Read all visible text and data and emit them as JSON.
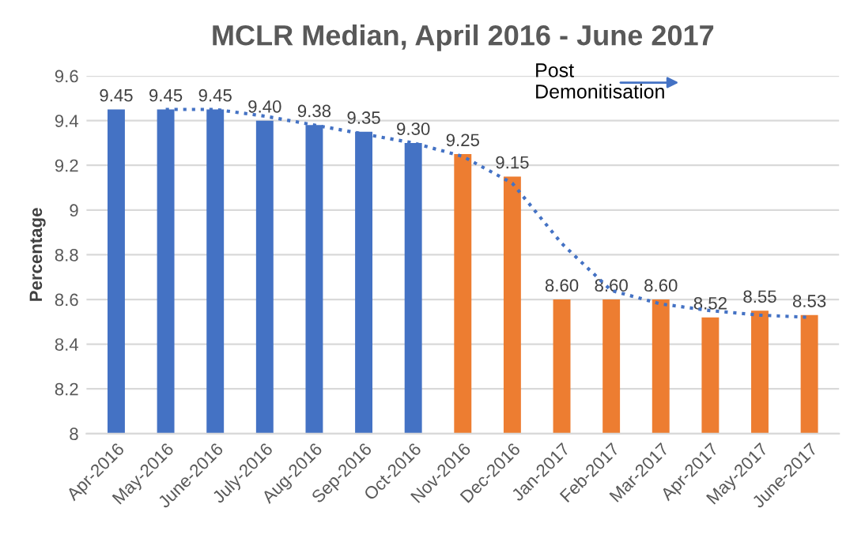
{
  "chart_data": {
    "type": "bar",
    "title": "MCLR Median, April 2016 - June 2017",
    "ylabel": "Percentage",
    "categories": [
      "Apr-2016",
      "May-2016",
      "June-2016",
      "July-2016",
      "Aug-2016",
      "Sep-2016",
      "Oct-2016",
      "Nov-2016",
      "Dec-2016",
      "Jan-2017",
      "Feb-2017",
      "Mar-2017",
      "Apr-2017",
      "May-2017",
      "June-2017"
    ],
    "series": [
      {
        "values": [
          9.45,
          9.45,
          9.45,
          9.4,
          9.38,
          9.35,
          9.3,
          9.25,
          9.15,
          8.6,
          8.6,
          8.6,
          8.52,
          8.55,
          8.53
        ],
        "colors": [
          "#4472c4",
          "#4472c4",
          "#4472c4",
          "#4472c4",
          "#4472c4",
          "#4472c4",
          "#4472c4",
          "#ed7d31",
          "#ed7d31",
          "#ed7d31",
          "#ed7d31",
          "#ed7d31",
          "#ed7d31",
          "#ed7d31",
          "#ed7d31"
        ],
        "value_labels": [
          "9.45",
          "9.45",
          "9.45",
          "9.40",
          "9.38",
          "9.35",
          "9.30",
          "9.25",
          "9.15",
          "8.60",
          "8.60",
          "8.60",
          "8.52",
          "8.55",
          "8.53"
        ]
      },
      {
        "type": "line",
        "color": "#4472c4",
        "line_style": "dotted",
        "values": [
          null,
          9.45,
          9.45,
          9.42,
          9.38,
          9.34,
          9.3,
          9.24,
          9.12,
          8.85,
          8.64,
          8.58,
          8.55,
          8.53,
          8.52
        ]
      }
    ],
    "annotations": [
      "Post\nDemonitisation"
    ],
    "ylim": [
      8,
      9.6
    ],
    "yticks": [
      8,
      8.2,
      8.4,
      8.6,
      8.8,
      9,
      9.2,
      9.4,
      9.6
    ],
    "grid": "y",
    "legend": false
  }
}
